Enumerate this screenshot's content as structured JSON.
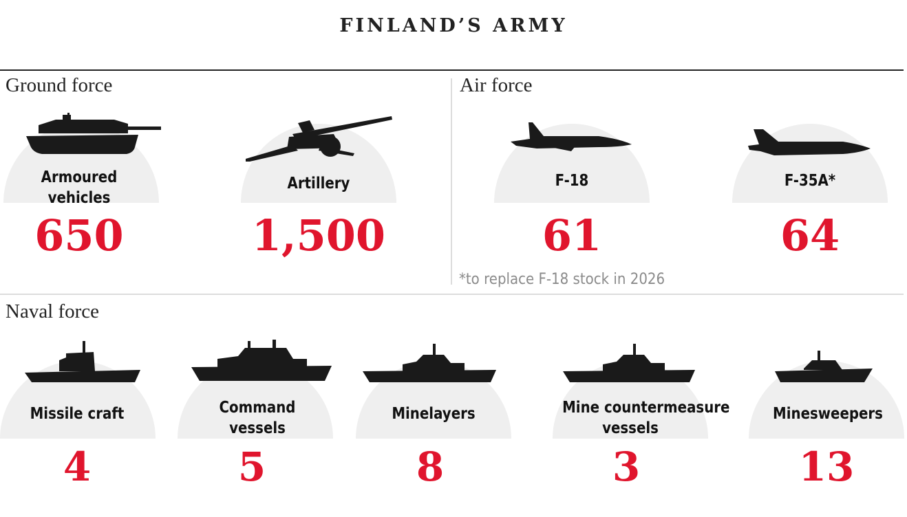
{
  "title": "FINLAND’S ARMY",
  "colors": {
    "accent": "#e0152d",
    "dome": "#efefef",
    "text": "#111111"
  },
  "ground": {
    "title": "Ground force",
    "items": [
      {
        "icon": "tank-icon",
        "label_lines": [
          "Armoured",
          "vehicles"
        ],
        "value": "650"
      },
      {
        "icon": "artillery-icon",
        "label_lines": [
          "Artillery"
        ],
        "value": "1,500"
      }
    ]
  },
  "air": {
    "title": "Air force",
    "items": [
      {
        "icon": "f18-jet-icon",
        "label_lines": [
          "F-18"
        ],
        "value": "61"
      },
      {
        "icon": "f35-jet-icon",
        "label_lines": [
          "F-35A*"
        ],
        "value": "64"
      }
    ],
    "footnote": "*to replace F-18 stock in 2026"
  },
  "naval": {
    "title": "Naval force",
    "items": [
      {
        "icon": "missile-craft-ship-icon",
        "label_lines": [
          "Missile craft"
        ],
        "value": "4"
      },
      {
        "icon": "command-vessel-ship-icon",
        "label_lines": [
          "Command",
          "vessels"
        ],
        "value": "5"
      },
      {
        "icon": "minelayer-ship-icon",
        "label_lines": [
          "Minelayers"
        ],
        "value": "8"
      },
      {
        "icon": "mine-countermeasure-ship-icon",
        "label_lines": [
          "Mine countermeasure",
          "vessels"
        ],
        "value": "3"
      },
      {
        "icon": "minesweeper-ship-icon",
        "label_lines": [
          "Minesweepers"
        ],
        "value": "13"
      }
    ]
  }
}
